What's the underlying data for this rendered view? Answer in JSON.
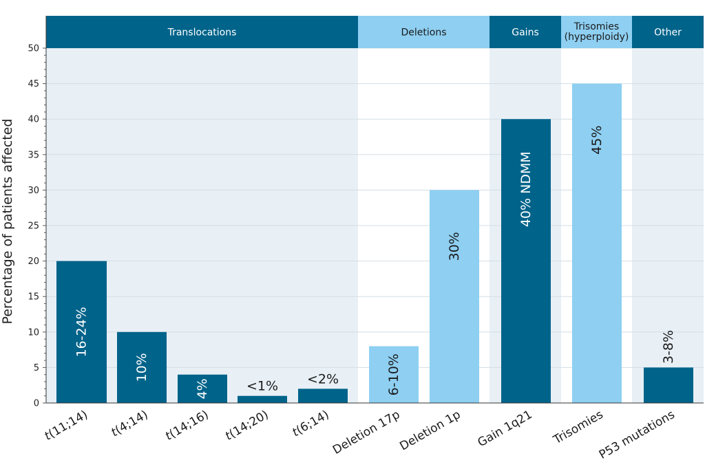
{
  "chart_data": {
    "type": "bar",
    "ylabel": "Percentage of patients affected",
    "ylim": [
      0,
      50
    ],
    "yticks": [
      0,
      5,
      10,
      15,
      20,
      25,
      30,
      35,
      40,
      45,
      50
    ],
    "grid": true,
    "colors": {
      "dark": "#00638a",
      "light": "#8ecff2",
      "panel_shaded": "#e8f0f6",
      "panel_plain": "#ffffff",
      "header_text_dark": "#ffffff",
      "header_text_light": "#1a1a1a"
    },
    "groups": [
      {
        "label_lines": [
          "Translocations"
        ],
        "color": "dark",
        "shaded": true,
        "count": 5
      },
      {
        "label_lines": [
          "Deletions"
        ],
        "color": "light",
        "shaded": false,
        "count": 2
      },
      {
        "label_lines": [
          "Gains"
        ],
        "color": "dark",
        "shaded": true,
        "count": 1
      },
      {
        "label_lines": [
          "Trisomies",
          "(hyperploidy)"
        ],
        "color": "light",
        "shaded": false,
        "count": 1
      },
      {
        "label_lines": [
          "Other"
        ],
        "color": "dark",
        "shaded": true,
        "count": 1
      }
    ],
    "bars": [
      {
        "category": "t(11;14)",
        "value": 20,
        "label": "16-24%",
        "color": "dark",
        "label_pos": "inside",
        "italic_t": true
      },
      {
        "category": "t(4;14)",
        "value": 10,
        "label": "10%",
        "color": "dark",
        "label_pos": "inside",
        "italic_t": true
      },
      {
        "category": "t(14;16)",
        "value": 4,
        "label": "4%",
        "color": "dark",
        "label_pos": "inside",
        "italic_t": true
      },
      {
        "category": "t(14;20)",
        "value": 1,
        "label": "<1%",
        "color": "dark",
        "label_pos": "above-horizontal",
        "italic_t": true
      },
      {
        "category": "t(6;14)",
        "value": 2,
        "label": "<2%",
        "color": "dark",
        "label_pos": "above-horizontal",
        "italic_t": true
      },
      {
        "category": "Deletion 17p",
        "value": 8,
        "label": "6-10%",
        "color": "light",
        "label_pos": "inside",
        "italic_t": false
      },
      {
        "category": "Deletion 1p",
        "value": 30,
        "label": "30%",
        "color": "light",
        "label_pos": "inside",
        "italic_t": false
      },
      {
        "category": "Gain 1q21",
        "value": 40,
        "label": "40% NDMM",
        "color": "dark",
        "label_pos": "inside",
        "italic_t": false
      },
      {
        "category": "Trisomies",
        "value": 45,
        "label": "45%",
        "color": "light",
        "label_pos": "inside",
        "italic_t": false
      },
      {
        "category": "P53 mutations",
        "value": 5,
        "label": "3-8%",
        "color": "dark",
        "label_pos": "above-vertical",
        "italic_t": false
      }
    ]
  }
}
